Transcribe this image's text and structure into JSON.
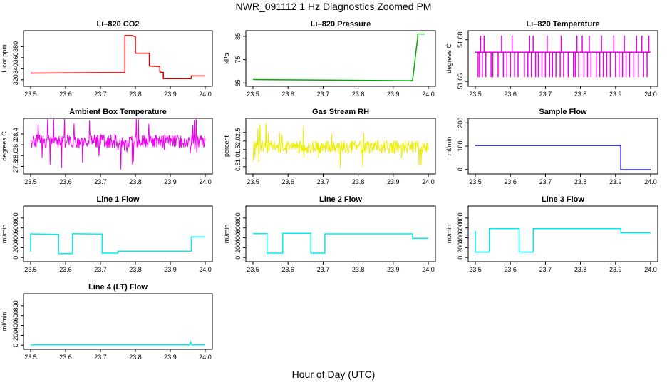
{
  "page": {
    "title": "NWR_091112  1 Hz Diagnostics Zoomed PM",
    "x_axis_title": "Hour of Day (UTC)"
  },
  "chart_data": [
    {
      "type": "line",
      "title": "Li–820 CO2",
      "ylabel": "Licor ppm",
      "xlim": [
        23.5,
        24.0
      ],
      "ylim": [
        312,
        405
      ],
      "xticks": [
        "23.5",
        "23.6",
        "23.7",
        "23.8",
        "23.9",
        "24.0"
      ],
      "yticks": [
        320,
        340,
        360,
        380
      ],
      "color": "#dd0000",
      "series": [
        {
          "x": [
            23.5,
            23.77,
            23.77,
            23.79,
            23.8,
            23.8,
            23.84,
            23.84,
            23.87,
            23.87,
            23.88,
            23.88,
            23.96,
            23.96,
            24.0
          ],
          "y": [
            332,
            333,
            400,
            400,
            398,
            368,
            368,
            345,
            344,
            334,
            333,
            322,
            322,
            327,
            327
          ]
        }
      ]
    },
    {
      "type": "line",
      "title": "Li–820 Pressure",
      "ylabel": "kPa",
      "xlim": [
        23.5,
        24.0
      ],
      "ylim": [
        64.5,
        86.5
      ],
      "xticks": [
        "23.5",
        "23.6",
        "23.7",
        "23.8",
        "23.9",
        "24.0"
      ],
      "yticks": [
        65,
        75,
        85
      ],
      "color": "#00aa00",
      "series": [
        {
          "x": [
            23.5,
            23.95,
            23.955,
            23.96,
            23.963,
            23.966,
            23.97,
            23.97,
            23.99
          ],
          "y": [
            66.5,
            66.0,
            66.1,
            72,
            76,
            80,
            84.5,
            86,
            86
          ]
        }
      ]
    },
    {
      "type": "line",
      "title": "Li–820 Temperature",
      "ylabel": "degrees C",
      "xlim": [
        23.5,
        24.0
      ],
      "ylim": [
        51.648,
        51.685
      ],
      "xticks": [
        "23.5",
        "23.6",
        "23.7",
        "23.8",
        "23.9",
        "24.0"
      ],
      "yticks": [
        "51.65",
        "51.68"
      ],
      "color": "#ee00ee",
      "baseline": 51.671,
      "high": 51.683,
      "low": 51.653,
      "up_x": [
        23.515,
        23.525,
        23.575,
        23.605,
        23.655,
        23.665,
        23.705,
        23.745,
        23.79,
        23.805,
        23.825,
        23.86,
        23.895,
        23.925,
        23.96,
        23.975,
        23.995
      ],
      "down_x": [
        23.508,
        23.512,
        23.52,
        23.53,
        23.545,
        23.55,
        23.565,
        23.58,
        23.59,
        23.6,
        23.612,
        23.622,
        23.64,
        23.65,
        23.66,
        23.672,
        23.68,
        23.69,
        23.7,
        23.712,
        23.72,
        23.73,
        23.742,
        23.752,
        23.765,
        23.78,
        23.785,
        23.795,
        23.81,
        23.82,
        23.83,
        23.845,
        23.855,
        23.865,
        23.875,
        23.885,
        23.9,
        23.91,
        23.92,
        23.93,
        23.94,
        23.952,
        23.965,
        23.98,
        23.99
      ]
    },
    {
      "type": "line",
      "title": "Ambient Box Temperature",
      "ylabel": "degrees C",
      "xlim": [
        23.5,
        24.0
      ],
      "ylim": [
        27.7,
        28.65
      ],
      "xticks": [
        "23.5",
        "23.6",
        "23.7",
        "23.8",
        "23.9",
        "24.0"
      ],
      "yticks": [
        "27.8",
        "28.0",
        "28.2",
        "28.4"
      ],
      "color": "#ee00ee",
      "noise": {
        "mean": 28.26,
        "spread": 0.26,
        "spikes": 0.55
      }
    },
    {
      "type": "line",
      "title": "Gas Stream RH",
      "ylabel": "percent",
      "xlim": [
        23.5,
        24.0
      ],
      "ylim": [
        0.2,
        3.2
      ],
      "xticks": [
        "23.5",
        "23.6",
        "23.7",
        "23.8",
        "23.9",
        "24.0"
      ],
      "yticks": [
        "0.5",
        "1.0",
        "1.5",
        "2.0",
        "2.5"
      ],
      "color": "#eeee00",
      "noise": {
        "mean": 1.65,
        "spread": 0.75,
        "spikes": 1.4
      }
    },
    {
      "type": "line",
      "title": "Sample Flow",
      "ylabel": "ml/min",
      "xlim": [
        23.5,
        24.0
      ],
      "ylim": [
        -10,
        210
      ],
      "xticks": [
        "23.5",
        "23.6",
        "23.7",
        "23.8",
        "23.9",
        "24.0"
      ],
      "yticks": [
        0,
        100,
        200
      ],
      "color": "#0000cc",
      "series": [
        {
          "x": [
            23.5,
            23.915,
            23.915,
            23.92,
            24.0
          ],
          "y": [
            103,
            103,
            0,
            -1,
            -1
          ]
        }
      ]
    },
    {
      "type": "line",
      "title": "Line 1 Flow",
      "ylabel": "ml/min",
      "xlim": [
        23.5,
        24.0
      ],
      "ylim": [
        -40,
        1000
      ],
      "xticks": [
        "23.5",
        "23.6",
        "23.7",
        "23.8",
        "23.9",
        "24.0"
      ],
      "yticks": [
        0,
        200,
        400,
        600,
        800
      ],
      "color": "#00eeee",
      "series": [
        {
          "x": [
            23.5,
            23.5,
            23.58,
            23.58,
            23.62,
            23.62,
            23.705,
            23.705,
            23.75,
            23.75,
            23.96,
            23.96,
            24.0
          ],
          "y": [
            120,
            480,
            470,
            80,
            80,
            485,
            475,
            90,
            90,
            130,
            130,
            420,
            420
          ]
        }
      ]
    },
    {
      "type": "line",
      "title": "Line 2 Flow",
      "ylabel": "ml/min",
      "xlim": [
        23.5,
        24.0
      ],
      "ylim": [
        -40,
        1000
      ],
      "xticks": [
        "23.5",
        "23.6",
        "23.7",
        "23.8",
        "23.9",
        "24.0"
      ],
      "yticks": [
        0,
        200,
        400,
        600,
        800
      ],
      "color": "#00eeee",
      "series": [
        {
          "x": [
            23.5,
            23.54,
            23.54,
            23.585,
            23.585,
            23.665,
            23.665,
            23.705,
            23.705,
            23.955,
            23.955,
            24.0
          ],
          "y": [
            485,
            485,
            90,
            90,
            490,
            490,
            90,
            90,
            480,
            480,
            390,
            390
          ]
        }
      ]
    },
    {
      "type": "line",
      "title": "Line 3 Flow",
      "ylabel": "ml/min",
      "xlim": [
        23.5,
        24.0
      ],
      "ylim": [
        -40,
        1000
      ],
      "xticks": [
        "23.5",
        "23.6",
        "23.7",
        "23.8",
        "23.9",
        "24.0"
      ],
      "yticks": [
        0,
        200,
        400,
        600,
        800
      ],
      "color": "#00eeee",
      "series": [
        {
          "x": [
            23.5,
            23.5,
            23.54,
            23.54,
            23.625,
            23.625,
            23.665,
            23.665,
            23.915,
            23.915,
            24.0
          ],
          "y": [
            540,
            110,
            110,
            585,
            585,
            110,
            110,
            585,
            585,
            500,
            500
          ]
        }
      ]
    },
    {
      "type": "line",
      "title": "Line 4 (LT) Flow",
      "ylabel": "ml/min",
      "xlim": [
        23.5,
        24.0
      ],
      "ylim": [
        -40,
        1000
      ],
      "xticks": [
        "23.5",
        "23.6",
        "23.7",
        "23.8",
        "23.9",
        "24.0"
      ],
      "yticks": [
        0,
        200,
        400,
        600,
        800
      ],
      "color": "#00eeee",
      "series": [
        {
          "x": [
            23.5,
            23.955,
            23.958,
            23.961,
            23.964,
            24.0
          ],
          "y": [
            8,
            8,
            70,
            10,
            8,
            8
          ]
        }
      ]
    }
  ]
}
